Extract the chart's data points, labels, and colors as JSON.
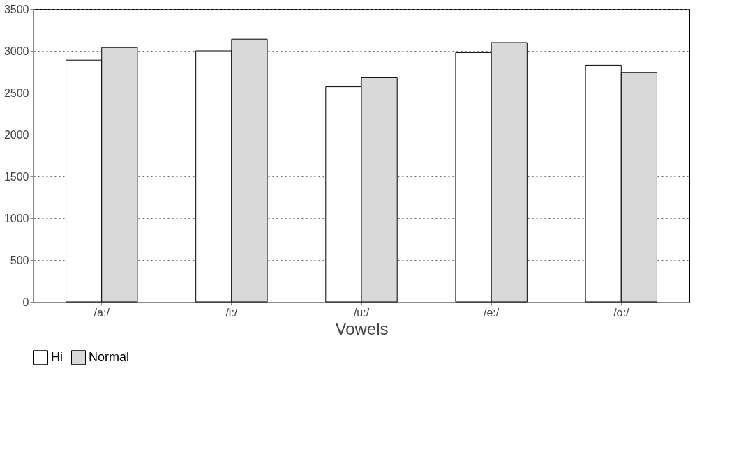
{
  "chart_data": {
    "type": "bar",
    "xlabel": "Vowels",
    "categories": [
      "/a:/",
      "/i:/",
      "/u:/",
      "/e:/",
      "/o:/"
    ],
    "series": [
      {
        "name": "Hi",
        "color": "#ffffff",
        "values": [
          2890,
          3000,
          2570,
          2980,
          2830
        ]
      },
      {
        "name": "Normal",
        "color": "#d9d9d9",
        "values": [
          3040,
          3140,
          2680,
          3100,
          2740
        ]
      }
    ],
    "ylim": [
      0,
      3500
    ],
    "yticks": [
      0,
      500,
      1000,
      1500,
      2000,
      2500,
      3000,
      3500
    ],
    "grid": "y",
    "line_style": "dotted",
    "legend": "bottom"
  }
}
